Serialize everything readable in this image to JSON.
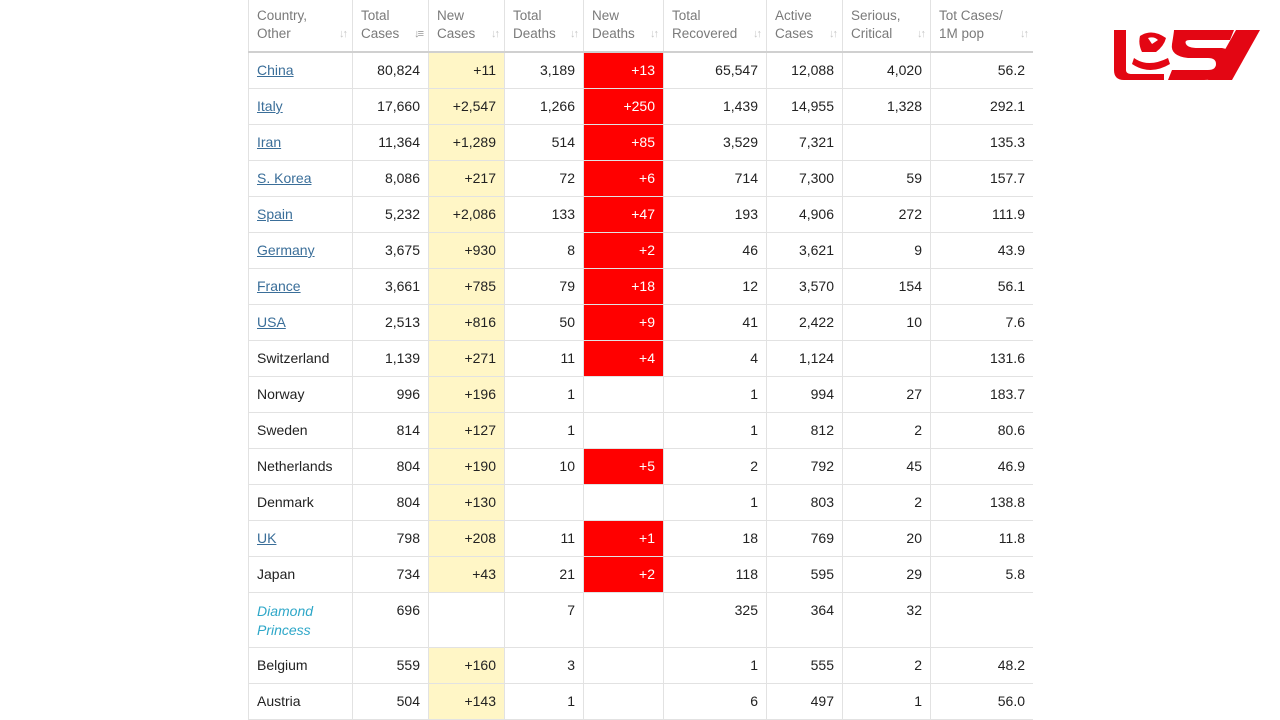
{
  "columns": [
    {
      "label_line1": "Country,",
      "label_line2": "Other"
    },
    {
      "label_line1": "Total",
      "label_line2": "Cases"
    },
    {
      "label_line1": "New",
      "label_line2": "Cases"
    },
    {
      "label_line1": "Total",
      "label_line2": "Deaths"
    },
    {
      "label_line1": "New",
      "label_line2": "Deaths"
    },
    {
      "label_line1": "Total",
      "label_line2": "Recovered"
    },
    {
      "label_line1": "Active",
      "label_line2": "Cases"
    },
    {
      "label_line1": "Serious,",
      "label_line2": "Critical"
    },
    {
      "label_line1": "Tot Cases/",
      "label_line2": "1M pop"
    }
  ],
  "sort_icons": {
    "inactive": "sort-arrows-icon",
    "active": "sort-descending-icon",
    "active_column": 1
  },
  "colors": {
    "new_cases_bg": "#fff6c6",
    "new_deaths_bg": "#ff0000",
    "link": "#3a6e99",
    "ship_text": "#2ea7c8",
    "logo": "#e30613"
  },
  "rows": [
    {
      "country": "China",
      "style": "link",
      "total_cases": "80,824",
      "new_cases": "+11",
      "total_deaths": "3,189",
      "new_deaths": "+13",
      "total_recovered": "65,547",
      "active_cases": "12,088",
      "serious_critical": "4,020",
      "tot_cases_1m": "56.2"
    },
    {
      "country": "Italy",
      "style": "link",
      "total_cases": "17,660",
      "new_cases": "+2,547",
      "total_deaths": "1,266",
      "new_deaths": "+250",
      "total_recovered": "1,439",
      "active_cases": "14,955",
      "serious_critical": "1,328",
      "tot_cases_1m": "292.1"
    },
    {
      "country": "Iran",
      "style": "link",
      "total_cases": "11,364",
      "new_cases": "+1,289",
      "total_deaths": "514",
      "new_deaths": "+85",
      "total_recovered": "3,529",
      "active_cases": "7,321",
      "serious_critical": "",
      "tot_cases_1m": "135.3"
    },
    {
      "country": "S. Korea",
      "style": "link",
      "total_cases": "8,086",
      "new_cases": "+217",
      "total_deaths": "72",
      "new_deaths": "+6",
      "total_recovered": "714",
      "active_cases": "7,300",
      "serious_critical": "59",
      "tot_cases_1m": "157.7"
    },
    {
      "country": "Spain",
      "style": "link",
      "total_cases": "5,232",
      "new_cases": "+2,086",
      "total_deaths": "133",
      "new_deaths": "+47",
      "total_recovered": "193",
      "active_cases": "4,906",
      "serious_critical": "272",
      "tot_cases_1m": "111.9"
    },
    {
      "country": "Germany",
      "style": "link",
      "total_cases": "3,675",
      "new_cases": "+930",
      "total_deaths": "8",
      "new_deaths": "+2",
      "total_recovered": "46",
      "active_cases": "3,621",
      "serious_critical": "9",
      "tot_cases_1m": "43.9"
    },
    {
      "country": "France",
      "style": "link",
      "total_cases": "3,661",
      "new_cases": "+785",
      "total_deaths": "79",
      "new_deaths": "+18",
      "total_recovered": "12",
      "active_cases": "3,570",
      "serious_critical": "154",
      "tot_cases_1m": "56.1"
    },
    {
      "country": "USA",
      "style": "link",
      "total_cases": "2,513",
      "new_cases": "+816",
      "total_deaths": "50",
      "new_deaths": "+9",
      "total_recovered": "41",
      "active_cases": "2,422",
      "serious_critical": "10",
      "tot_cases_1m": "7.6"
    },
    {
      "country": "Switzerland",
      "style": "plain",
      "total_cases": "1,139",
      "new_cases": "+271",
      "total_deaths": "11",
      "new_deaths": "+4",
      "total_recovered": "4",
      "active_cases": "1,124",
      "serious_critical": "",
      "tot_cases_1m": "131.6"
    },
    {
      "country": "Norway",
      "style": "plain",
      "total_cases": "996",
      "new_cases": "+196",
      "total_deaths": "1",
      "new_deaths": "",
      "total_recovered": "1",
      "active_cases": "994",
      "serious_critical": "27",
      "tot_cases_1m": "183.7"
    },
    {
      "country": "Sweden",
      "style": "plain",
      "total_cases": "814",
      "new_cases": "+127",
      "total_deaths": "1",
      "new_deaths": "",
      "total_recovered": "1",
      "active_cases": "812",
      "serious_critical": "2",
      "tot_cases_1m": "80.6"
    },
    {
      "country": "Netherlands",
      "style": "plain",
      "total_cases": "804",
      "new_cases": "+190",
      "total_deaths": "10",
      "new_deaths": "+5",
      "total_recovered": "2",
      "active_cases": "792",
      "serious_critical": "45",
      "tot_cases_1m": "46.9"
    },
    {
      "country": "Denmark",
      "style": "plain",
      "total_cases": "804",
      "new_cases": "+130",
      "total_deaths": "",
      "new_deaths": "",
      "total_recovered": "1",
      "active_cases": "803",
      "serious_critical": "2",
      "tot_cases_1m": "138.8"
    },
    {
      "country": "UK",
      "style": "link",
      "total_cases": "798",
      "new_cases": "+208",
      "total_deaths": "11",
      "new_deaths": "+1",
      "total_recovered": "18",
      "active_cases": "769",
      "serious_critical": "20",
      "tot_cases_1m": "11.8"
    },
    {
      "country": "Japan",
      "style": "plain",
      "total_cases": "734",
      "new_cases": "+43",
      "total_deaths": "21",
      "new_deaths": "+2",
      "total_recovered": "118",
      "active_cases": "595",
      "serious_critical": "29",
      "tot_cases_1m": "5.8"
    },
    {
      "country": "Diamond Princess",
      "style": "italic",
      "total_cases": "696",
      "new_cases": "",
      "total_deaths": "7",
      "new_deaths": "",
      "total_recovered": "325",
      "active_cases": "364",
      "serious_critical": "32",
      "tot_cases_1m": ""
    },
    {
      "country": "Belgium",
      "style": "plain",
      "total_cases": "559",
      "new_cases": "+160",
      "total_deaths": "3",
      "new_deaths": "",
      "total_recovered": "1",
      "active_cases": "555",
      "serious_critical": "2",
      "tot_cases_1m": "48.2"
    },
    {
      "country": "Austria",
      "style": "plain",
      "total_cases": "504",
      "new_cases": "+143",
      "total_deaths": "1",
      "new_deaths": "",
      "total_recovered": "6",
      "active_cases": "497",
      "serious_critical": "1",
      "tot_cases_1m": "56.0"
    }
  ],
  "logo": {
    "name": "brand-logo",
    "text": "LEX"
  }
}
